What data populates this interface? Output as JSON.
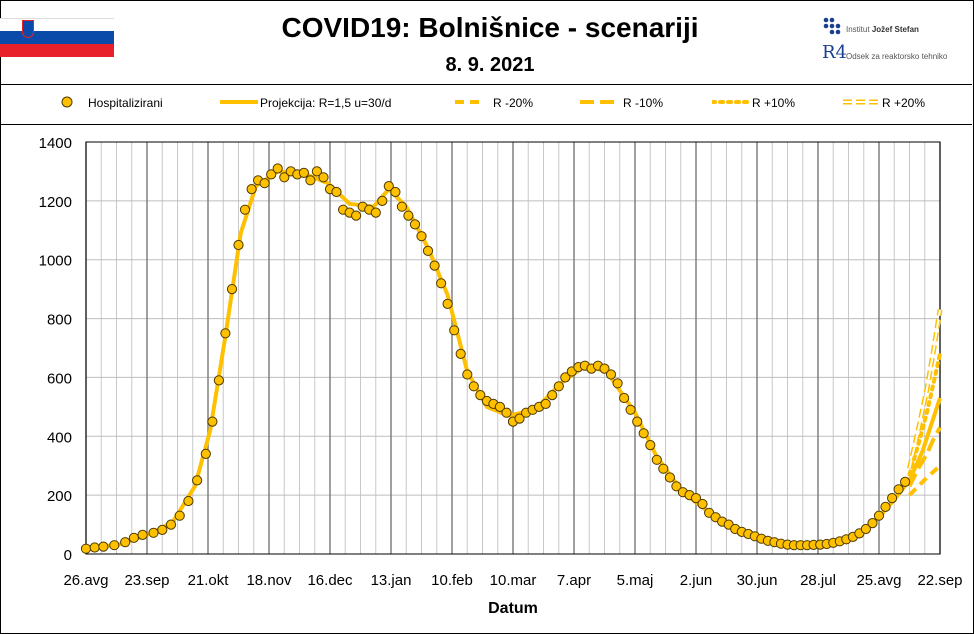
{
  "header": {
    "title": "COVID19: Bolnišnice - scenariji",
    "date": "8. 9. 2021",
    "institute": "Institut",
    "institute_bold": "Jožef Stefan",
    "department": "Odsek za reaktorsko tehniko",
    "department_logo": "R4"
  },
  "colors": {
    "series": "#FFC000",
    "marker_edge": "#4d3a00",
    "flag_white": "#ffffff",
    "flag_blue": "#0a4aa8",
    "flag_red": "#e8202a",
    "grid": "#808080"
  },
  "legend": [
    {
      "key": "hospitalized",
      "label": "Hospitalizirani",
      "style": "marker"
    },
    {
      "key": "projection",
      "label": "Projekcija: R=1,5 u=30/d",
      "style": "solid"
    },
    {
      "key": "r_minus20",
      "label": "R -20%",
      "style": "dash"
    },
    {
      "key": "r_minus10",
      "label": "R -10%",
      "style": "longdash"
    },
    {
      "key": "r_plus10",
      "label": "R +10%",
      "style": "dot"
    },
    {
      "key": "r_plus20",
      "label": "R +20%",
      "style": "hollow"
    }
  ],
  "chart_data": {
    "type": "line",
    "title": "COVID19: Bolnišnice - scenariji",
    "subtitle": "8. 9. 2021",
    "xlabel": "Datum",
    "ylabel": "",
    "ylim": [
      0,
      1400
    ],
    "yticks": [
      0,
      200,
      400,
      600,
      800,
      1000,
      1200,
      1400
    ],
    "xlim": [
      "2020-08-26",
      "2021-09-22"
    ],
    "xticks": [
      "2020-08-26",
      "2020-09-23",
      "2020-10-21",
      "2020-11-18",
      "2020-12-16",
      "2021-01-13",
      "2021-02-10",
      "2021-03-10",
      "2021-04-07",
      "2021-05-05",
      "2021-06-02",
      "2021-06-30",
      "2021-07-28",
      "2021-08-25",
      "2021-09-22"
    ],
    "xtick_labels": [
      "26.avg",
      "23.sep",
      "21.okt",
      "18.nov",
      "16.dec",
      "13.jan",
      "10.feb",
      "10.mar",
      "7.apr",
      "5.maj",
      "2.jun",
      "30.jun",
      "28.jul",
      "25.avg",
      "22.sep"
    ],
    "grid": true,
    "legend_position": "top",
    "series": [
      {
        "name": "Hospitalizirani",
        "style": "marker",
        "points": [
          [
            "2020-08-26",
            18
          ],
          [
            "2020-08-30",
            22
          ],
          [
            "2020-09-03",
            25
          ],
          [
            "2020-09-08",
            30
          ],
          [
            "2020-09-13",
            40
          ],
          [
            "2020-09-17",
            55
          ],
          [
            "2020-09-21",
            65
          ],
          [
            "2020-09-26",
            72
          ],
          [
            "2020-09-30",
            82
          ],
          [
            "2020-10-04",
            100
          ],
          [
            "2020-10-08",
            130
          ],
          [
            "2020-10-12",
            180
          ],
          [
            "2020-10-16",
            250
          ],
          [
            "2020-10-20",
            340
          ],
          [
            "2020-10-23",
            450
          ],
          [
            "2020-10-26",
            590
          ],
          [
            "2020-10-29",
            750
          ],
          [
            "2020-11-01",
            900
          ],
          [
            "2020-11-04",
            1050
          ],
          [
            "2020-11-07",
            1170
          ],
          [
            "2020-11-10",
            1240
          ],
          [
            "2020-11-13",
            1270
          ],
          [
            "2020-11-16",
            1260
          ],
          [
            "2020-11-19",
            1290
          ],
          [
            "2020-11-22",
            1310
          ],
          [
            "2020-11-25",
            1280
          ],
          [
            "2020-11-28",
            1300
          ],
          [
            "2020-12-01",
            1290
          ],
          [
            "2020-12-04",
            1295
          ],
          [
            "2020-12-07",
            1270
          ],
          [
            "2020-12-10",
            1300
          ],
          [
            "2020-12-13",
            1280
          ],
          [
            "2020-12-16",
            1240
          ],
          [
            "2020-12-19",
            1230
          ],
          [
            "2020-12-22",
            1170
          ],
          [
            "2020-12-25",
            1160
          ],
          [
            "2020-12-28",
            1150
          ],
          [
            "2020-12-31",
            1180
          ],
          [
            "2021-01-03",
            1170
          ],
          [
            "2021-01-06",
            1160
          ],
          [
            "2021-01-09",
            1200
          ],
          [
            "2021-01-12",
            1250
          ],
          [
            "2021-01-15",
            1230
          ],
          [
            "2021-01-18",
            1180
          ],
          [
            "2021-01-21",
            1150
          ],
          [
            "2021-01-24",
            1120
          ],
          [
            "2021-01-27",
            1080
          ],
          [
            "2021-01-30",
            1030
          ],
          [
            "2021-02-02",
            980
          ],
          [
            "2021-02-05",
            920
          ],
          [
            "2021-02-08",
            850
          ],
          [
            "2021-02-11",
            760
          ],
          [
            "2021-02-14",
            680
          ],
          [
            "2021-02-17",
            610
          ],
          [
            "2021-02-20",
            570
          ],
          [
            "2021-02-23",
            540
          ],
          [
            "2021-02-26",
            520
          ],
          [
            "2021-03-01",
            510
          ],
          [
            "2021-03-04",
            500
          ],
          [
            "2021-03-07",
            480
          ],
          [
            "2021-03-10",
            450
          ],
          [
            "2021-03-13",
            460
          ],
          [
            "2021-03-16",
            480
          ],
          [
            "2021-03-19",
            490
          ],
          [
            "2021-03-22",
            500
          ],
          [
            "2021-03-25",
            510
          ],
          [
            "2021-03-28",
            540
          ],
          [
            "2021-03-31",
            570
          ],
          [
            "2021-04-03",
            600
          ],
          [
            "2021-04-06",
            620
          ],
          [
            "2021-04-09",
            635
          ],
          [
            "2021-04-12",
            640
          ],
          [
            "2021-04-15",
            630
          ],
          [
            "2021-04-18",
            640
          ],
          [
            "2021-04-21",
            630
          ],
          [
            "2021-04-24",
            610
          ],
          [
            "2021-04-27",
            580
          ],
          [
            "2021-04-30",
            530
          ],
          [
            "2021-05-03",
            490
          ],
          [
            "2021-05-06",
            450
          ],
          [
            "2021-05-09",
            410
          ],
          [
            "2021-05-12",
            370
          ],
          [
            "2021-05-15",
            320
          ],
          [
            "2021-05-18",
            290
          ],
          [
            "2021-05-21",
            260
          ],
          [
            "2021-05-24",
            230
          ],
          [
            "2021-05-27",
            210
          ],
          [
            "2021-05-30",
            200
          ],
          [
            "2021-06-02",
            190
          ],
          [
            "2021-06-05",
            170
          ],
          [
            "2021-06-08",
            140
          ],
          [
            "2021-06-11",
            125
          ],
          [
            "2021-06-14",
            110
          ],
          [
            "2021-06-17",
            100
          ],
          [
            "2021-06-20",
            85
          ],
          [
            "2021-06-23",
            75
          ],
          [
            "2021-06-26",
            68
          ],
          [
            "2021-06-29",
            60
          ],
          [
            "2021-07-02",
            52
          ],
          [
            "2021-07-05",
            45
          ],
          [
            "2021-07-08",
            40
          ],
          [
            "2021-07-11",
            35
          ],
          [
            "2021-07-14",
            32
          ],
          [
            "2021-07-17",
            30
          ],
          [
            "2021-07-20",
            30
          ],
          [
            "2021-07-23",
            30
          ],
          [
            "2021-07-26",
            31
          ],
          [
            "2021-07-29",
            32
          ],
          [
            "2021-08-01",
            34
          ],
          [
            "2021-08-04",
            38
          ],
          [
            "2021-08-07",
            43
          ],
          [
            "2021-08-10",
            50
          ],
          [
            "2021-08-13",
            58
          ],
          [
            "2021-08-16",
            70
          ],
          [
            "2021-08-19",
            85
          ],
          [
            "2021-08-22",
            105
          ],
          [
            "2021-08-25",
            130
          ],
          [
            "2021-08-28",
            160
          ],
          [
            "2021-08-31",
            190
          ],
          [
            "2021-09-03",
            220
          ],
          [
            "2021-09-06",
            245
          ]
        ]
      },
      {
        "name": "Projekcija: R=1,5 u=30/d",
        "style": "solid",
        "points": [
          [
            "2020-08-26",
            18
          ],
          [
            "2020-09-10",
            32
          ],
          [
            "2020-09-25",
            70
          ],
          [
            "2020-10-05",
            110
          ],
          [
            "2020-10-15",
            230
          ],
          [
            "2020-10-22",
            420
          ],
          [
            "2020-10-29",
            740
          ],
          [
            "2020-11-05",
            1090
          ],
          [
            "2020-11-12",
            1250
          ],
          [
            "2020-11-22",
            1300
          ],
          [
            "2020-12-05",
            1290
          ],
          [
            "2020-12-15",
            1260
          ],
          [
            "2020-12-25",
            1190
          ],
          [
            "2021-01-05",
            1180
          ],
          [
            "2021-01-12",
            1240
          ],
          [
            "2021-01-20",
            1180
          ],
          [
            "2021-01-30",
            1040
          ],
          [
            "2021-02-08",
            880
          ],
          [
            "2021-02-17",
            620
          ],
          [
            "2021-02-26",
            500
          ],
          [
            "2021-03-08",
            470
          ],
          [
            "2021-03-20",
            490
          ],
          [
            "2021-04-01",
            580
          ],
          [
            "2021-04-12",
            640
          ],
          [
            "2021-04-22",
            620
          ],
          [
            "2021-05-05",
            480
          ],
          [
            "2021-05-15",
            330
          ],
          [
            "2021-05-27",
            210
          ],
          [
            "2021-06-10",
            130
          ],
          [
            "2021-06-25",
            70
          ],
          [
            "2021-07-10",
            38
          ],
          [
            "2021-07-25",
            30
          ],
          [
            "2021-08-10",
            48
          ],
          [
            "2021-08-22",
            100
          ],
          [
            "2021-09-01",
            185
          ],
          [
            "2021-09-08",
            250
          ],
          [
            "2021-09-14",
            350
          ],
          [
            "2021-09-18",
            440
          ],
          [
            "2021-09-22",
            530
          ]
        ]
      },
      {
        "name": "R -20%",
        "style": "dash",
        "points": [
          [
            "2021-09-08",
            200
          ],
          [
            "2021-09-12",
            230
          ],
          [
            "2021-09-16",
            260
          ],
          [
            "2021-09-19",
            280
          ],
          [
            "2021-09-22",
            300
          ]
        ]
      },
      {
        "name": "R -10%",
        "style": "longdash",
        "points": [
          [
            "2021-09-08",
            230
          ],
          [
            "2021-09-12",
            290
          ],
          [
            "2021-09-16",
            340
          ],
          [
            "2021-09-19",
            390
          ],
          [
            "2021-09-22",
            430
          ]
        ]
      },
      {
        "name": "R +10%",
        "style": "dot",
        "points": [
          [
            "2021-09-08",
            270
          ],
          [
            "2021-09-12",
            370
          ],
          [
            "2021-09-16",
            480
          ],
          [
            "2021-09-19",
            580
          ],
          [
            "2021-09-22",
            680
          ]
        ]
      },
      {
        "name": "R +20%",
        "style": "hollow",
        "points": [
          [
            "2021-09-08",
            290
          ],
          [
            "2021-09-12",
            420
          ],
          [
            "2021-09-16",
            560
          ],
          [
            "2021-09-19",
            690
          ],
          [
            "2021-09-22",
            830
          ]
        ]
      }
    ]
  }
}
